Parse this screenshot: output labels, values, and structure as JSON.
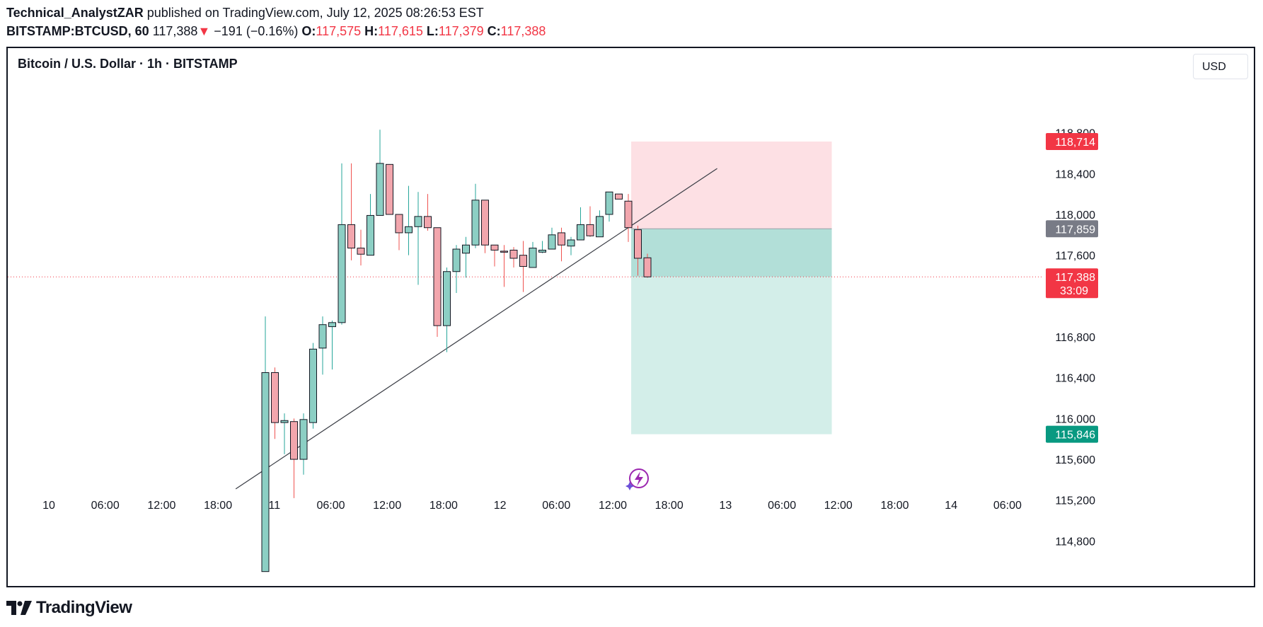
{
  "header": {
    "author": "Technical_AnalystZAR",
    "published": "published on TradingView.com, July 12, 2025 08:26:53 EST",
    "symbol": "BITSTAMP:BTCUSD, 60",
    "last": "117,388",
    "change_arrow": "▼",
    "change": "−191 (−0.16%)",
    "o_label": "O:",
    "o_value": "117,575",
    "h_label": "H:",
    "h_value": "117,615",
    "l_label": "L:",
    "l_value": "117,379",
    "c_label": "C:",
    "c_value": "117,388"
  },
  "chart_title": "Bitcoin / U.S. Dollar · 1h · BITSTAMP",
  "currency_button": "USD",
  "brand": "TradingView",
  "colors": {
    "up": "#8ccfc4",
    "down": "#f2a6ad",
    "up_wick": "#26a69a",
    "down_wick": "#ef5350",
    "stop_zone": "#fde0e4",
    "target_zone_near": "#b2dfd8",
    "target_zone": "#d3eee9",
    "stop_badge": "#f23645",
    "entry_badge": "#787b86",
    "target_badge": "#089981",
    "text": "#131722"
  },
  "chart_data": {
    "type": "candlestick",
    "symbol": "BITSTAMP:BTCUSD",
    "interval": "1h",
    "y_ticks": [
      "118,800",
      "118,400",
      "118,000",
      "117,600",
      "116,800",
      "116,400",
      "116,000",
      "115,600",
      "115,200",
      "114,800"
    ],
    "x_ticks": [
      "10",
      "06:00",
      "12:00",
      "18:00",
      "11",
      "06:00",
      "12:00",
      "18:00",
      "12",
      "06:00",
      "12:00",
      "18:00",
      "13",
      "06:00",
      "12:00",
      "18:00",
      "14",
      "06:00"
    ],
    "candles": [
      {
        "o": 114500,
        "h": 117000,
        "l": 114500,
        "c": 116450
      },
      {
        "o": 116450,
        "h": 116500,
        "l": 115800,
        "c": 115960
      },
      {
        "o": 115960,
        "h": 116050,
        "l": 115650,
        "c": 115980
      },
      {
        "o": 115970,
        "h": 116000,
        "l": 115220,
        "c": 115600
      },
      {
        "o": 115600,
        "h": 116050,
        "l": 115450,
        "c": 115990
      },
      {
        "o": 115960,
        "h": 116740,
        "l": 115900,
        "c": 116680
      },
      {
        "o": 116690,
        "h": 117000,
        "l": 116430,
        "c": 116920
      },
      {
        "o": 116900,
        "h": 116960,
        "l": 116480,
        "c": 116940
      },
      {
        "o": 116940,
        "h": 118500,
        "l": 116920,
        "c": 117900
      },
      {
        "o": 117900,
        "h": 118500,
        "l": 117550,
        "c": 117670
      },
      {
        "o": 117670,
        "h": 117850,
        "l": 117500,
        "c": 117610
      },
      {
        "o": 117600,
        "h": 118200,
        "l": 117600,
        "c": 117990
      },
      {
        "o": 117990,
        "h": 118830,
        "l": 117990,
        "c": 118500
      },
      {
        "o": 118490,
        "h": 118490,
        "l": 118000,
        "c": 118000
      },
      {
        "o": 118000,
        "h": 118000,
        "l": 117650,
        "c": 117820
      },
      {
        "o": 117820,
        "h": 118280,
        "l": 117600,
        "c": 117880
      },
      {
        "o": 117880,
        "h": 118220,
        "l": 117310,
        "c": 117980
      },
      {
        "o": 117980,
        "h": 118200,
        "l": 117840,
        "c": 117870
      },
      {
        "o": 117870,
        "h": 117870,
        "l": 116800,
        "c": 116910
      },
      {
        "o": 116910,
        "h": 117480,
        "l": 116650,
        "c": 117440
      },
      {
        "o": 117440,
        "h": 117700,
        "l": 117230,
        "c": 117660
      },
      {
        "o": 117620,
        "h": 117780,
        "l": 117380,
        "c": 117700
      },
      {
        "o": 117700,
        "h": 118300,
        "l": 117670,
        "c": 118140
      },
      {
        "o": 118140,
        "h": 118140,
        "l": 117620,
        "c": 117700
      },
      {
        "o": 117700,
        "h": 117700,
        "l": 117490,
        "c": 117650
      },
      {
        "o": 117640,
        "h": 117700,
        "l": 117290,
        "c": 117630
      },
      {
        "o": 117650,
        "h": 117680,
        "l": 117480,
        "c": 117570
      },
      {
        "o": 117600,
        "h": 117740,
        "l": 117240,
        "c": 117490
      },
      {
        "o": 117480,
        "h": 117730,
        "l": 117480,
        "c": 117670
      },
      {
        "o": 117630,
        "h": 117740,
        "l": 117620,
        "c": 117650
      },
      {
        "o": 117660,
        "h": 117870,
        "l": 117660,
        "c": 117800
      },
      {
        "o": 117820,
        "h": 117870,
        "l": 117540,
        "c": 117700
      },
      {
        "o": 117690,
        "h": 117780,
        "l": 117600,
        "c": 117750
      },
      {
        "o": 117750,
        "h": 118070,
        "l": 117750,
        "c": 117900
      },
      {
        "o": 117900,
        "h": 118080,
        "l": 117780,
        "c": 117790
      },
      {
        "o": 117780,
        "h": 118040,
        "l": 117780,
        "c": 117980
      },
      {
        "o": 118000,
        "h": 118220,
        "l": 117930,
        "c": 118220
      },
      {
        "o": 118200,
        "h": 118200,
        "l": 118150,
        "c": 118150
      },
      {
        "o": 118130,
        "h": 118200,
        "l": 117730,
        "c": 117870
      },
      {
        "o": 117850,
        "h": 117890,
        "l": 117400,
        "c": 117570
      },
      {
        "o": 117575,
        "h": 117615,
        "l": 117379,
        "c": 117388
      }
    ],
    "trendline": {
      "from": {
        "bar": -3.1,
        "price": 115310
      },
      "to": {
        "bar": 47.3,
        "price": 118450
      }
    },
    "position": {
      "type": "short",
      "start_bar": 38.3,
      "end_bar": 59.3,
      "stop_loss": "118,714",
      "entry": "117,859",
      "take_profit": "115,846",
      "stop_value": 118714,
      "entry_value": 117859,
      "target_value": 115846
    },
    "last_price": {
      "value": 117388,
      "label": "117,388",
      "countdown": "33:09"
    }
  }
}
